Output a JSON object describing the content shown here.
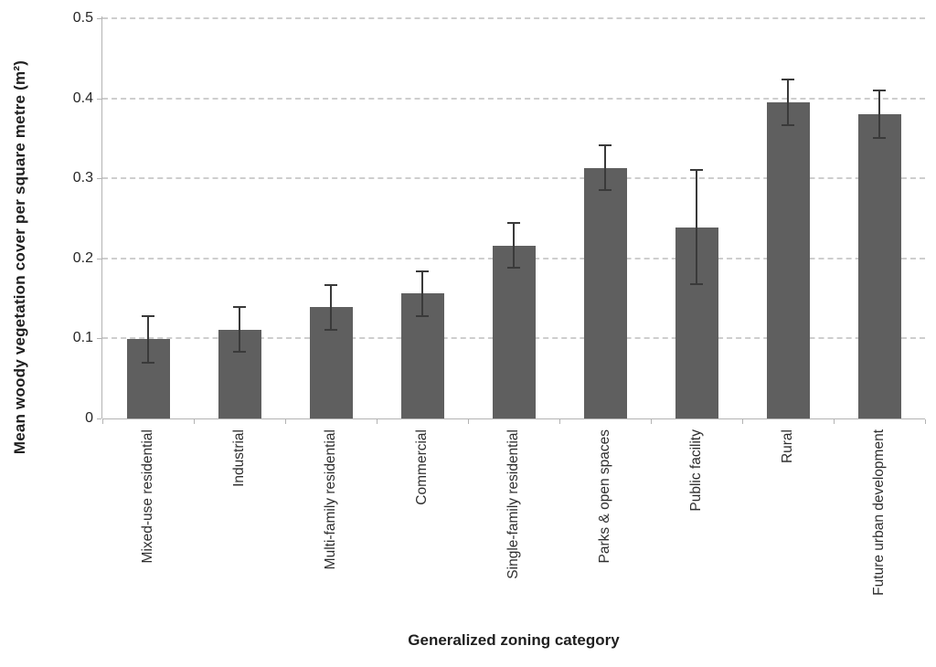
{
  "chart_data": {
    "type": "bar",
    "title": "",
    "xlabel": "Generalized zoning category",
    "ylabel": "Mean woody vegetation cover per square metre (m²)",
    "ylim": [
      0,
      0.5
    ],
    "yticks": [
      0,
      0.1,
      0.2,
      0.3,
      0.4,
      0.5
    ],
    "ytick_labels": [
      "0",
      "0.1",
      "0.2",
      "0.3",
      "0.4",
      "0.5"
    ],
    "grid": "horizontal-dashed",
    "legend": "none",
    "bar_color": "#5f5f5f",
    "error_bar_color": "#3a3a3a",
    "axis_color": "#b3b3b3",
    "gridline_color": "#cecece",
    "categories": [
      "Mixed-use residential",
      "Industrial",
      "Multi-family residential",
      "Commercial",
      "Single-family residential",
      "Parks & open spaces",
      "Public facility",
      "Rural",
      "Future urban development"
    ],
    "series": [
      {
        "name": "Mean woody vegetation cover",
        "values": [
          0.099,
          0.111,
          0.139,
          0.156,
          0.216,
          0.313,
          0.239,
          0.395,
          0.38
        ],
        "errors": [
          0.029,
          0.028,
          0.028,
          0.028,
          0.028,
          0.028,
          0.071,
          0.029,
          0.03
        ]
      }
    ]
  }
}
